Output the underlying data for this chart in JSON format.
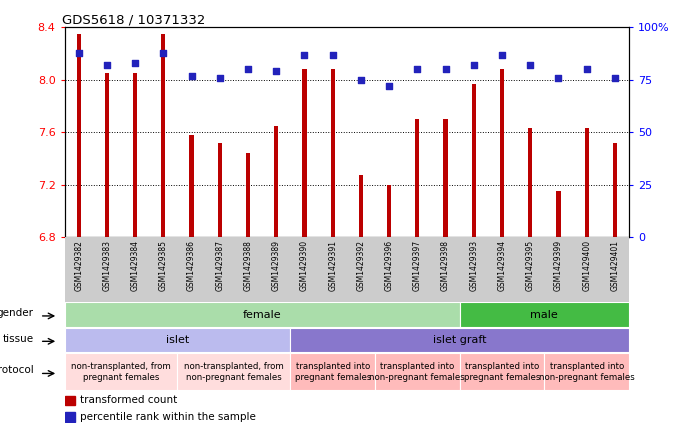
{
  "title": "GDS5618 / 10371332",
  "samples": [
    "GSM1429382",
    "GSM1429383",
    "GSM1429384",
    "GSM1429385",
    "GSM1429386",
    "GSM1429387",
    "GSM1429388",
    "GSM1429389",
    "GSM1429390",
    "GSM1429391",
    "GSM1429392",
    "GSM1429396",
    "GSM1429397",
    "GSM1429398",
    "GSM1429393",
    "GSM1429394",
    "GSM1429395",
    "GSM1429399",
    "GSM1429400",
    "GSM1429401"
  ],
  "bar_values": [
    8.35,
    8.05,
    8.05,
    8.35,
    7.58,
    7.52,
    7.44,
    7.65,
    8.08,
    8.08,
    7.27,
    7.2,
    7.7,
    7.7,
    7.97,
    8.08,
    7.63,
    7.15,
    7.63,
    7.52
  ],
  "dot_values": [
    88,
    82,
    83,
    88,
    77,
    76,
    80,
    79,
    87,
    87,
    75,
    72,
    80,
    80,
    82,
    87,
    82,
    76,
    80,
    76
  ],
  "ylim_left": [
    6.8,
    8.4
  ],
  "ylim_right": [
    0,
    100
  ],
  "yticks_left": [
    6.8,
    7.2,
    7.6,
    8.0,
    8.4
  ],
  "yticks_right": [
    0,
    25,
    50,
    75,
    100
  ],
  "ytick_labels_right": [
    "0",
    "25",
    "50",
    "75",
    "100%"
  ],
  "bar_color": "#bb0000",
  "dot_color": "#2222bb",
  "gender_data": [
    {
      "label": "female",
      "start": 0,
      "end": 14,
      "color": "#aaddaa"
    },
    {
      "label": "male",
      "start": 14,
      "end": 20,
      "color": "#44bb44"
    }
  ],
  "tissue_data": [
    {
      "label": "islet",
      "start": 0,
      "end": 8,
      "color": "#bbbbee"
    },
    {
      "label": "islet graft",
      "start": 8,
      "end": 20,
      "color": "#8877cc"
    }
  ],
  "protocol_data": [
    {
      "label": "non-transplanted, from\npregnant females",
      "start": 0,
      "end": 4,
      "color": "#ffdddd"
    },
    {
      "label": "non-transplanted, from\nnon-pregnant females",
      "start": 4,
      "end": 8,
      "color": "#ffdddd"
    },
    {
      "label": "transplanted into\npregnant females",
      "start": 8,
      "end": 11,
      "color": "#ffbbbb"
    },
    {
      "label": "transplanted into\nnon-pregnant females",
      "start": 11,
      "end": 14,
      "color": "#ffbbbb"
    },
    {
      "label": "transplanted into\npregnant females",
      "start": 14,
      "end": 17,
      "color": "#ffbbbb"
    },
    {
      "label": "transplanted into\nnon-pregnant females",
      "start": 17,
      "end": 20,
      "color": "#ffbbbb"
    }
  ],
  "n_samples": 20,
  "bar_width": 0.15
}
